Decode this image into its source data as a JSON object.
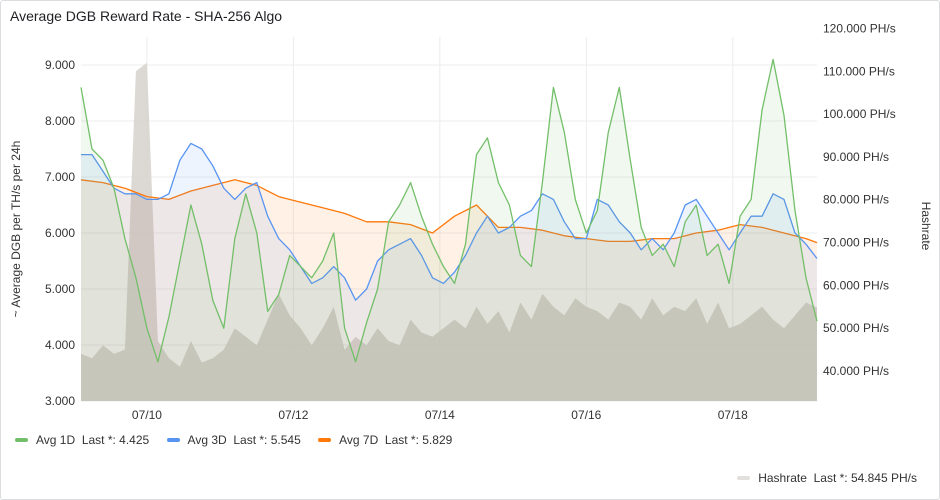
{
  "panel": {
    "title": "Average DGB Reward Rate - SHA-256 Algo"
  },
  "colors": {
    "avg1d": "#73bf69",
    "avg3d": "#5794f2",
    "avg7d": "#ff780a",
    "hashrate": "#d6d2cc",
    "grid": "#ececec"
  },
  "chart_data": {
    "type": "line",
    "title": "Average DGB Reward Rate - SHA-256 Algo",
    "ylabel": "~ Average DGB per TH/s per 24h",
    "y2label": "Hashrate",
    "ylim": [
      3.0,
      9.5
    ],
    "y2lim": [
      33.0,
      118.0
    ],
    "yticks": [
      "3.000",
      "4.000",
      "5.000",
      "6.000",
      "7.000",
      "8.000",
      "9.000"
    ],
    "y2ticks": [
      "40.000 PH/s",
      "50.000 PH/s",
      "60.000 PH/s",
      "70.000 PH/s",
      "80.000 PH/s",
      "90.000 PH/s",
      "100.000 PH/s",
      "110.000 PH/s",
      "120.000 PH/s"
    ],
    "xticks": [
      "07/10",
      "07/12",
      "07/14",
      "07/16",
      "07/18"
    ],
    "xlim": [
      0,
      10.05
    ],
    "xtick_positions": [
      0.9,
      2.9,
      4.9,
      6.9,
      8.9
    ],
    "series": [
      {
        "name": "Avg 1D",
        "axis": "left",
        "last_label": "Last *: 4.425",
        "x": [
          0,
          0.15,
          0.3,
          0.45,
          0.6,
          0.75,
          0.9,
          1.05,
          1.2,
          1.35,
          1.5,
          1.65,
          1.8,
          1.95,
          2.1,
          2.25,
          2.4,
          2.55,
          2.7,
          2.85,
          3.0,
          3.15,
          3.3,
          3.45,
          3.6,
          3.75,
          3.9,
          4.05,
          4.2,
          4.35,
          4.5,
          4.65,
          4.8,
          4.95,
          5.1,
          5.25,
          5.4,
          5.55,
          5.7,
          5.85,
          6.0,
          6.15,
          6.3,
          6.45,
          6.6,
          6.75,
          6.9,
          7.05,
          7.2,
          7.35,
          7.5,
          7.65,
          7.8,
          7.95,
          8.1,
          8.25,
          8.4,
          8.55,
          8.7,
          8.85,
          9.0,
          9.15,
          9.3,
          9.45,
          9.6,
          9.75,
          9.9,
          10.05
        ],
        "y": [
          8.6,
          7.5,
          7.3,
          6.8,
          5.9,
          5.2,
          4.3,
          3.7,
          4.5,
          5.5,
          6.5,
          5.8,
          4.8,
          4.3,
          5.9,
          6.7,
          6.0,
          4.6,
          4.9,
          5.6,
          5.4,
          5.2,
          5.5,
          6.0,
          4.3,
          3.7,
          4.4,
          5.0,
          6.2,
          6.5,
          6.9,
          6.3,
          5.8,
          5.4,
          5.1,
          5.8,
          7.4,
          7.7,
          6.9,
          6.5,
          5.6,
          5.4,
          6.9,
          8.6,
          7.8,
          6.6,
          6.0,
          6.4,
          7.8,
          8.6,
          7.3,
          6.1,
          5.6,
          5.8,
          5.4,
          6.2,
          6.5,
          5.6,
          5.8,
          5.1,
          6.3,
          6.6,
          8.2,
          9.1,
          8.1,
          6.4,
          5.2,
          4.425
        ]
      },
      {
        "name": "Avg 3D",
        "axis": "left",
        "last_label": "Last *: 5.545",
        "x": [
          0,
          0.15,
          0.3,
          0.45,
          0.6,
          0.75,
          0.9,
          1.05,
          1.2,
          1.35,
          1.5,
          1.65,
          1.8,
          1.95,
          2.1,
          2.25,
          2.4,
          2.55,
          2.7,
          2.85,
          3.0,
          3.15,
          3.3,
          3.45,
          3.6,
          3.75,
          3.9,
          4.05,
          4.2,
          4.35,
          4.5,
          4.65,
          4.8,
          4.95,
          5.1,
          5.25,
          5.4,
          5.55,
          5.7,
          5.85,
          6.0,
          6.15,
          6.3,
          6.45,
          6.6,
          6.75,
          6.9,
          7.05,
          7.2,
          7.35,
          7.5,
          7.65,
          7.8,
          7.95,
          8.1,
          8.25,
          8.4,
          8.55,
          8.7,
          8.85,
          9.0,
          9.15,
          9.3,
          9.45,
          9.6,
          9.75,
          9.9,
          10.05
        ],
        "y": [
          7.4,
          7.4,
          7.1,
          6.8,
          6.7,
          6.7,
          6.6,
          6.6,
          6.7,
          7.3,
          7.6,
          7.5,
          7.2,
          6.8,
          6.6,
          6.8,
          6.9,
          6.3,
          5.9,
          5.7,
          5.4,
          5.1,
          5.2,
          5.4,
          5.2,
          4.8,
          5.0,
          5.5,
          5.7,
          5.8,
          5.9,
          5.6,
          5.2,
          5.1,
          5.3,
          5.6,
          6.0,
          6.3,
          6.0,
          6.1,
          6.3,
          6.4,
          6.7,
          6.6,
          6.2,
          5.9,
          5.9,
          6.6,
          6.5,
          6.2,
          6.0,
          5.7,
          5.9,
          5.7,
          6.0,
          6.5,
          6.6,
          6.3,
          6.0,
          5.7,
          6.0,
          6.3,
          6.3,
          6.7,
          6.6,
          6.0,
          5.8,
          5.545
        ]
      },
      {
        "name": "Avg 7D",
        "axis": "left",
        "last_label": "Last *: 5.829",
        "x": [
          0,
          0.3,
          0.6,
          0.9,
          1.2,
          1.5,
          1.8,
          2.1,
          2.4,
          2.7,
          3.0,
          3.3,
          3.6,
          3.9,
          4.2,
          4.5,
          4.8,
          5.1,
          5.4,
          5.7,
          6.0,
          6.3,
          6.6,
          6.9,
          7.2,
          7.5,
          7.8,
          8.1,
          8.4,
          8.7,
          9.0,
          9.3,
          9.6,
          9.9,
          10.05
        ],
        "y": [
          6.95,
          6.9,
          6.8,
          6.65,
          6.6,
          6.75,
          6.85,
          6.95,
          6.85,
          6.65,
          6.55,
          6.45,
          6.35,
          6.2,
          6.2,
          6.15,
          6.0,
          6.3,
          6.5,
          6.1,
          6.1,
          6.05,
          5.95,
          5.9,
          5.85,
          5.85,
          5.9,
          5.9,
          6.0,
          6.05,
          6.15,
          6.1,
          6.0,
          5.9,
          5.829
        ]
      },
      {
        "name": "Hashrate",
        "axis": "right",
        "last_label": "Last *: 54.845 PH/s",
        "x": [
          0,
          0.15,
          0.3,
          0.45,
          0.6,
          0.75,
          0.9,
          1.05,
          1.2,
          1.35,
          1.5,
          1.65,
          1.8,
          1.95,
          2.1,
          2.25,
          2.4,
          2.55,
          2.7,
          2.85,
          3.0,
          3.15,
          3.3,
          3.45,
          3.6,
          3.75,
          3.9,
          4.05,
          4.2,
          4.35,
          4.5,
          4.65,
          4.8,
          4.95,
          5.1,
          5.25,
          5.4,
          5.55,
          5.7,
          5.85,
          6.0,
          6.15,
          6.3,
          6.45,
          6.6,
          6.75,
          6.9,
          7.05,
          7.2,
          7.35,
          7.5,
          7.65,
          7.8,
          7.95,
          8.1,
          8.25,
          8.4,
          8.55,
          8.7,
          8.85,
          9.0,
          9.15,
          9.3,
          9.45,
          9.6,
          9.75,
          9.9,
          10.05
        ],
        "y": [
          44,
          43,
          46,
          44,
          45,
          110,
          112,
          47,
          43,
          41,
          47,
          42,
          43,
          45,
          50,
          48,
          46,
          52,
          58,
          53,
          50,
          46,
          50,
          55,
          45,
          48,
          46,
          50,
          47,
          46,
          52,
          49,
          48,
          50,
          52,
          50,
          55,
          51,
          54,
          49,
          56,
          52,
          58,
          55,
          53,
          57,
          55,
          54,
          52,
          56,
          55,
          52,
          57,
          53,
          55,
          54,
          57,
          51,
          56,
          50,
          51,
          53,
          55,
          52,
          50,
          53,
          56,
          54.845
        ]
      }
    ]
  },
  "legend": {
    "avg1d": {
      "name": "Avg 1D",
      "last": "Last *: 4.425"
    },
    "avg3d": {
      "name": "Avg 3D",
      "last": "Last *: 5.545"
    },
    "avg7d": {
      "name": "Avg 7D",
      "last": "Last *: 5.829"
    },
    "hashrate": {
      "name": "Hashrate",
      "last": "Last *: 54.845 PH/s"
    }
  }
}
